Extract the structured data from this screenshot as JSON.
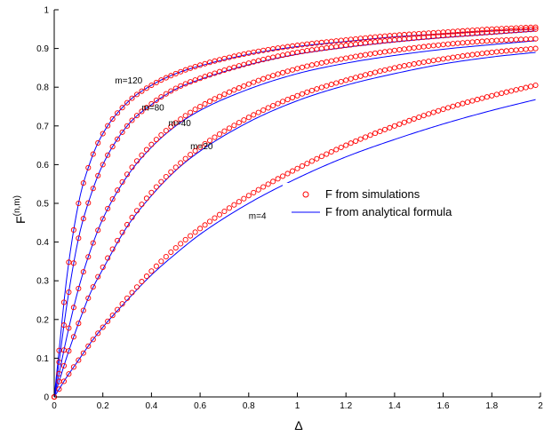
{
  "chart_data": {
    "type": "line",
    "title": "",
    "xlabel": "Δ",
    "ylabel_base": "F",
    "ylabel_sup": "(n,m)",
    "xlim": [
      0,
      2
    ],
    "ylim": [
      0,
      1
    ],
    "xticks": [
      "0",
      "0.2",
      "0.4",
      "0.6",
      "0.8",
      "1",
      "1.2",
      "1.4",
      "1.6",
      "1.8",
      "2"
    ],
    "yticks": [
      "0",
      "0.1",
      "0.2",
      "0.3",
      "0.4",
      "0.5",
      "0.6",
      "0.7",
      "0.8",
      "0.9",
      "1"
    ],
    "grid": false,
    "legend_position": "center-right",
    "legend": [
      {
        "label": "F from simulations",
        "marker": "circle",
        "color": "#ff0000"
      },
      {
        "label": "F from analytical formula",
        "marker": "line",
        "color": "#0000ff"
      }
    ],
    "curve_labels": [
      {
        "text": "m=120",
        "x": 0.25,
        "y": 0.81
      },
      {
        "text": "m=80",
        "x": 0.36,
        "y": 0.74
      },
      {
        "text": "m=40",
        "x": 0.47,
        "y": 0.7
      },
      {
        "text": "m=20",
        "x": 0.56,
        "y": 0.64
      },
      {
        "text": "m=4",
        "x": 0.8,
        "y": 0.46
      }
    ],
    "series": [
      {
        "name": "m=120",
        "analytical": {
          "x": [
            0,
            0.02,
            0.05,
            0.1,
            0.15,
            0.2,
            0.3,
            0.4,
            0.5,
            0.6,
            0.8,
            1.0,
            1.2,
            1.4,
            1.6,
            1.8,
            1.98
          ],
          "y": [
            0,
            0.12,
            0.3,
            0.5,
            0.61,
            0.68,
            0.76,
            0.805,
            0.835,
            0.855,
            0.885,
            0.905,
            0.918,
            0.93,
            0.938,
            0.945,
            0.95
          ]
        },
        "simulation": {
          "x": [
            0,
            0.02,
            0.05,
            0.1,
            0.15,
            0.2,
            0.3,
            0.4,
            0.5,
            0.6,
            0.8,
            1.0,
            1.2,
            1.4,
            1.6,
            1.8,
            1.98
          ],
          "y": [
            0,
            0.12,
            0.3,
            0.5,
            0.61,
            0.68,
            0.76,
            0.805,
            0.835,
            0.857,
            0.888,
            0.908,
            0.922,
            0.934,
            0.942,
            0.95,
            0.955
          ]
        }
      },
      {
        "name": "m=80",
        "analytical": {
          "x": [
            0,
            0.02,
            0.05,
            0.1,
            0.15,
            0.2,
            0.3,
            0.4,
            0.5,
            0.6,
            0.8,
            1.0,
            1.2,
            1.4,
            1.6,
            1.8,
            1.98
          ],
          "y": [
            0,
            0.09,
            0.23,
            0.41,
            0.52,
            0.6,
            0.7,
            0.755,
            0.795,
            0.82,
            0.858,
            0.885,
            0.903,
            0.917,
            0.928,
            0.937,
            0.945
          ]
        },
        "simulation": {
          "x": [
            0,
            0.02,
            0.05,
            0.1,
            0.15,
            0.2,
            0.3,
            0.4,
            0.5,
            0.6,
            0.8,
            1.0,
            1.2,
            1.4,
            1.6,
            1.8,
            1.98
          ],
          "y": [
            0,
            0.09,
            0.23,
            0.41,
            0.52,
            0.6,
            0.7,
            0.757,
            0.797,
            0.823,
            0.862,
            0.89,
            0.908,
            0.922,
            0.933,
            0.942,
            0.95
          ]
        }
      },
      {
        "name": "m=40",
        "analytical": {
          "x": [
            0,
            0.02,
            0.05,
            0.1,
            0.15,
            0.2,
            0.3,
            0.4,
            0.5,
            0.6,
            0.8,
            1.0,
            1.2,
            1.4,
            1.6,
            1.8,
            1.98
          ],
          "y": [
            0,
            0.06,
            0.15,
            0.28,
            0.38,
            0.46,
            0.57,
            0.645,
            0.7,
            0.74,
            0.795,
            0.835,
            0.862,
            0.882,
            0.898,
            0.91,
            0.92
          ]
        },
        "simulation": {
          "x": [
            0,
            0.02,
            0.05,
            0.1,
            0.15,
            0.2,
            0.3,
            0.4,
            0.5,
            0.6,
            0.8,
            1.0,
            1.2,
            1.4,
            1.6,
            1.8,
            1.98
          ],
          "y": [
            0,
            0.06,
            0.15,
            0.28,
            0.38,
            0.46,
            0.575,
            0.652,
            0.708,
            0.75,
            0.808,
            0.848,
            0.875,
            0.895,
            0.91,
            0.92,
            0.925
          ]
        }
      },
      {
        "name": "m=20",
        "analytical": {
          "x": [
            0,
            0.02,
            0.05,
            0.1,
            0.15,
            0.2,
            0.3,
            0.4,
            0.5,
            0.6,
            0.8,
            1.0,
            1.2,
            1.4,
            1.6,
            1.8,
            1.98
          ],
          "y": [
            0,
            0.04,
            0.1,
            0.19,
            0.27,
            0.33,
            0.44,
            0.52,
            0.585,
            0.635,
            0.71,
            0.765,
            0.805,
            0.835,
            0.86,
            0.878,
            0.89
          ]
        },
        "simulation": {
          "x": [
            0,
            0.02,
            0.05,
            0.1,
            0.15,
            0.2,
            0.3,
            0.4,
            0.5,
            0.6,
            0.8,
            1.0,
            1.2,
            1.4,
            1.6,
            1.8,
            1.98
          ],
          "y": [
            0,
            0.04,
            0.1,
            0.19,
            0.27,
            0.335,
            0.445,
            0.528,
            0.593,
            0.645,
            0.722,
            0.778,
            0.818,
            0.85,
            0.873,
            0.89,
            0.9
          ]
        }
      },
      {
        "name": "m=4",
        "analytical": {
          "x": [
            0,
            0.02,
            0.05,
            0.1,
            0.15,
            0.2,
            0.3,
            0.4,
            0.5,
            0.6,
            0.8,
            1.0,
            1.2,
            1.4,
            1.6,
            1.8,
            1.98
          ],
          "y": [
            0,
            0.02,
            0.05,
            0.095,
            0.14,
            0.18,
            0.25,
            0.315,
            0.37,
            0.42,
            0.5,
            0.565,
            0.62,
            0.665,
            0.705,
            0.74,
            0.768
          ]
        },
        "simulation": {
          "x": [
            0,
            0.02,
            0.05,
            0.1,
            0.15,
            0.2,
            0.3,
            0.4,
            0.5,
            0.6,
            0.8,
            1.0,
            1.2,
            1.4,
            1.6,
            1.8,
            1.98
          ],
          "y": [
            0,
            0.02,
            0.05,
            0.095,
            0.14,
            0.18,
            0.255,
            0.325,
            0.385,
            0.435,
            0.52,
            0.59,
            0.65,
            0.7,
            0.743,
            0.778,
            0.805
          ]
        }
      }
    ]
  }
}
